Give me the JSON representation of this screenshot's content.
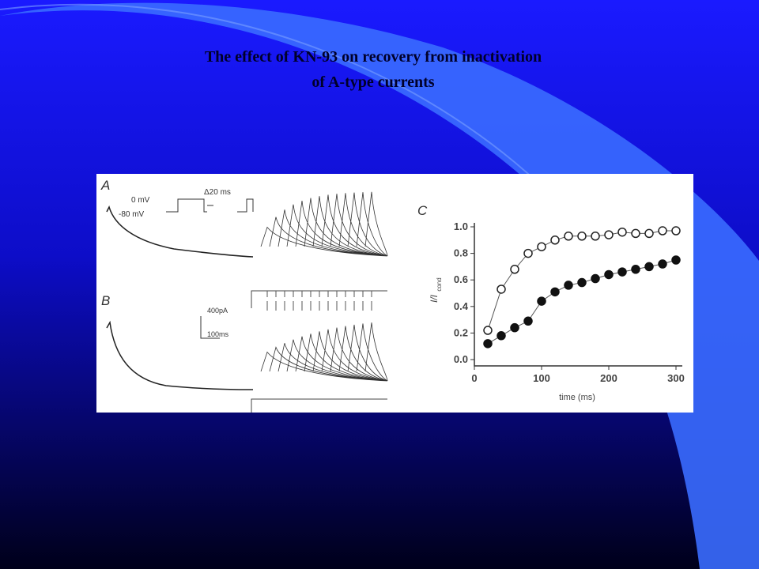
{
  "slide": {
    "title_lines": [
      "The effect of KN-93 on recovery from inactivation",
      "of A-type currents"
    ]
  },
  "figure": {
    "panels": [
      "A",
      "B",
      "C"
    ],
    "annotations": [
      "0 mV",
      "-80 mV",
      "Δ20 ms",
      "400pA",
      "100ms"
    ]
  },
  "chart_data": {
    "type": "scatter",
    "x_label": "time (ms)",
    "y_label": "I/I",
    "y_label_subscript": "cond",
    "xlim": [
      0,
      300
    ],
    "ylim": [
      0,
      1.0
    ],
    "xticks": [
      0,
      100,
      200,
      300
    ],
    "yticks": [
      {
        "value": 0,
        "label": "0.0"
      },
      0.2,
      0.4,
      0.6,
      0.8,
      {
        "value": 1,
        "label": "1.0"
      }
    ],
    "x": [
      20,
      40,
      60,
      80,
      100,
      120,
      140,
      160,
      180,
      200,
      220,
      240,
      260,
      280,
      300
    ],
    "series": [
      {
        "marker": "open",
        "color": "#222222",
        "values": [
          0.22,
          0.53,
          0.68,
          0.8,
          0.85,
          0.9,
          0.93,
          0.93,
          0.93,
          0.94,
          0.96,
          0.95,
          0.95,
          0.97,
          0.97
        ]
      },
      {
        "marker": "filled",
        "color": "#111111",
        "values": [
          0.12,
          0.18,
          0.24,
          0.29,
          0.44,
          0.51,
          0.56,
          0.58,
          0.61,
          0.64,
          0.66,
          0.68,
          0.7,
          0.72,
          0.75
        ]
      }
    ]
  }
}
